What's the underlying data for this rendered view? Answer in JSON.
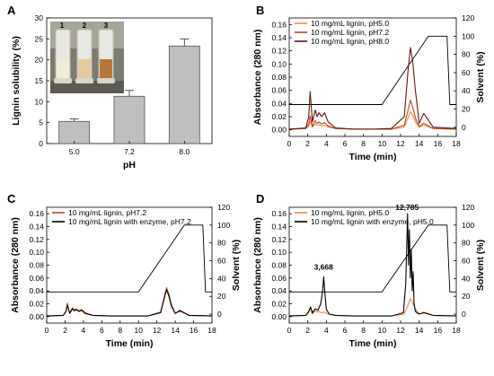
{
  "chart_data": [
    {
      "panel": "A",
      "type": "bar",
      "xlabel": "pH",
      "ylabel": "Lignin solubility (%)",
      "categories": [
        "5.0",
        "7.2",
        "8.0"
      ],
      "values": [
        5.3,
        11.3,
        23.3
      ],
      "errors": [
        0.6,
        1.4,
        1.7
      ],
      "ylim": [
        0,
        30
      ],
      "yticks": [
        "0",
        "5",
        "10",
        "15",
        "20",
        "25",
        "30"
      ],
      "bar_color": "#bfbfbf",
      "inset_photo_labels": [
        "1",
        "2",
        "3"
      ]
    },
    {
      "panel": "B",
      "type": "line",
      "xlabel": "Time (min)",
      "ylabel": "Absorbance (280 nm)",
      "ylabel_right": "Solvent (%)",
      "xlim": [
        0,
        18
      ],
      "ylim": [
        -0.01,
        0.17
      ],
      "ylim_right": [
        -10,
        120
      ],
      "xticks": [
        "0",
        "2",
        "4",
        "6",
        "8",
        "10",
        "12",
        "14",
        "16",
        "18"
      ],
      "yticks": [
        "0.00",
        "0.02",
        "0.04",
        "0.06",
        "0.08",
        "0.10",
        "0.12",
        "0.14",
        "0.16"
      ],
      "yticks_right": [
        "0",
        "20",
        "40",
        "60",
        "80",
        "100",
        "120"
      ],
      "legend_position": "top-left",
      "series": [
        {
          "name": "10 mg/mL lignin, pH5.0",
          "color": "#f08a4b",
          "x": [
            0,
            1.8,
            2.1,
            2.25,
            2.5,
            2.8,
            3.0,
            3.2,
            3.5,
            3.8,
            4.2,
            5,
            7,
            9,
            11,
            12.4,
            12.8,
            13.05,
            13.3,
            13.6,
            14.0,
            14.5,
            15.5,
            18
          ],
          "y": [
            0.001,
            0.002,
            0.006,
            0.013,
            0.004,
            0.009,
            0.007,
            0.008,
            0.006,
            0.007,
            0.004,
            0.002,
            0.001,
            0.001,
            0.001,
            0.004,
            0.018,
            0.028,
            0.022,
            0.012,
            0.004,
            0.007,
            0.002,
            0.001
          ]
        },
        {
          "name": "10 mg/mL lignin, pH7.2",
          "color": "#c0441c",
          "x": [
            0,
            1.8,
            2.1,
            2.25,
            2.5,
            2.8,
            3.0,
            3.2,
            3.5,
            3.8,
            4.2,
            5,
            7,
            9,
            11,
            12.4,
            12.8,
            13.05,
            13.3,
            13.6,
            14.0,
            14.5,
            15.5,
            18
          ],
          "y": [
            0.001,
            0.002,
            0.009,
            0.021,
            0.005,
            0.014,
            0.01,
            0.012,
            0.009,
            0.011,
            0.006,
            0.002,
            0.001,
            0.001,
            0.001,
            0.007,
            0.03,
            0.045,
            0.035,
            0.018,
            0.005,
            0.01,
            0.002,
            0.001
          ]
        },
        {
          "name": "10 mg/mL lignin, pH8.0",
          "color": "#5a1a12",
          "x": [
            0,
            1.8,
            2.1,
            2.25,
            2.5,
            2.8,
            3.0,
            3.2,
            3.5,
            3.8,
            4.2,
            5,
            7,
            9,
            11,
            12.4,
            12.8,
            13.05,
            13.3,
            13.6,
            14.0,
            14.5,
            15.5,
            18
          ],
          "y": [
            0.001,
            0.003,
            0.02,
            0.058,
            0.012,
            0.03,
            0.02,
            0.026,
            0.02,
            0.026,
            0.012,
            0.003,
            0.001,
            0.001,
            0.002,
            0.02,
            0.09,
            0.125,
            0.105,
            0.06,
            0.01,
            0.025,
            0.004,
            0.002
          ]
        },
        {
          "name": "Solvent",
          "axis": "right",
          "color": "#000000",
          "x": [
            0,
            10,
            15,
            17,
            17.3,
            18
          ],
          "y": [
            25,
            25,
            100,
            100,
            25,
            25
          ]
        }
      ]
    },
    {
      "panel": "C",
      "type": "line",
      "xlabel": "Time (min)",
      "ylabel": "Absorbance (280 nm)",
      "ylabel_right": "Solvent (%)",
      "xlim": [
        0,
        18
      ],
      "ylim": [
        -0.01,
        0.17
      ],
      "ylim_right": [
        -10,
        120
      ],
      "xticks": [
        "0",
        "2",
        "4",
        "6",
        "8",
        "10",
        "12",
        "14",
        "16",
        "18"
      ],
      "yticks": [
        "0.00",
        "0.02",
        "0.04",
        "0.06",
        "0.08",
        "0.10",
        "0.12",
        "0.14",
        "0.16"
      ],
      "yticks_right": [
        "0",
        "20",
        "40",
        "60",
        "80",
        "100",
        "120"
      ],
      "legend_position": "top-left",
      "series": [
        {
          "name": "10 mg/mL lignin, pH7.2",
          "color": "#c0441c",
          "x": [
            0,
            1.8,
            2.1,
            2.25,
            2.5,
            2.8,
            3.0,
            3.2,
            3.5,
            3.8,
            4.2,
            5,
            7,
            9,
            11,
            12.4,
            12.8,
            13.05,
            13.3,
            13.6,
            14.0,
            14.5,
            15.5,
            18
          ],
          "y": [
            0.001,
            0.002,
            0.009,
            0.021,
            0.005,
            0.014,
            0.01,
            0.012,
            0.009,
            0.011,
            0.006,
            0.002,
            0.001,
            0.001,
            0.001,
            0.007,
            0.03,
            0.045,
            0.035,
            0.018,
            0.005,
            0.01,
            0.002,
            0.001
          ]
        },
        {
          "name": "10 mg/mL lignin with enzyme, pH7.2",
          "color": "#000000",
          "x": [
            0,
            1.8,
            2.1,
            2.25,
            2.5,
            2.8,
            3.0,
            3.2,
            3.5,
            3.8,
            4.2,
            5,
            7,
            9,
            11,
            12.4,
            12.8,
            13.05,
            13.3,
            13.6,
            14.0,
            14.5,
            15.5,
            18
          ],
          "y": [
            0.001,
            0.002,
            0.008,
            0.018,
            0.005,
            0.012,
            0.009,
            0.011,
            0.008,
            0.01,
            0.005,
            0.002,
            0.001,
            0.001,
            0.001,
            0.006,
            0.028,
            0.042,
            0.032,
            0.016,
            0.005,
            0.009,
            0.002,
            0.001
          ]
        },
        {
          "name": "Solvent",
          "axis": "right",
          "color": "#000000",
          "x": [
            0,
            10,
            15,
            17,
            17.3,
            18
          ],
          "y": [
            25,
            25,
            100,
            100,
            25,
            25
          ]
        }
      ]
    },
    {
      "panel": "D",
      "type": "line",
      "xlabel": "Time (min)",
      "ylabel": "Absorbance (280 nm)",
      "ylabel_right": "Solvent (%)",
      "xlim": [
        0,
        18
      ],
      "ylim": [
        -0.01,
        0.17
      ],
      "ylim_right": [
        -10,
        120
      ],
      "xticks": [
        "0",
        "2",
        "4",
        "6",
        "8",
        "10",
        "12",
        "14",
        "16",
        "18"
      ],
      "yticks": [
        "0.00",
        "0.02",
        "0.04",
        "0.06",
        "0.08",
        "0.10",
        "0.12",
        "0.14",
        "0.16"
      ],
      "yticks_right": [
        "0",
        "20",
        "40",
        "60",
        "80",
        "100",
        "120"
      ],
      "legend_position": "top-left",
      "annotations": [
        {
          "text": "3,668",
          "x": 3.7,
          "y": 0.073
        },
        {
          "text": "12,785",
          "x": 12.7,
          "y": 0.166
        }
      ],
      "series": [
        {
          "name": "10 mg/mL lignin, pH5.0",
          "color": "#f08a4b",
          "x": [
            0,
            1.8,
            2.1,
            2.25,
            2.5,
            2.8,
            3.0,
            3.2,
            3.5,
            3.8,
            4.2,
            5,
            7,
            9,
            11,
            12.4,
            12.8,
            13.05,
            13.3,
            13.6,
            14.0,
            14.5,
            15.5,
            18
          ],
          "y": [
            0.001,
            0.002,
            0.006,
            0.013,
            0.004,
            0.009,
            0.007,
            0.008,
            0.006,
            0.007,
            0.004,
            0.002,
            0.001,
            0.001,
            0.001,
            0.004,
            0.018,
            0.028,
            0.022,
            0.012,
            0.004,
            0.007,
            0.002,
            0.001
          ]
        },
        {
          "name": "10 mg/mL lignin with enzyme, pH5.0",
          "color": "#000000",
          "x": [
            0,
            1.8,
            2.1,
            2.3,
            2.5,
            2.8,
            3.1,
            3.4,
            3.6,
            3.72,
            3.85,
            4.0,
            4.3,
            5,
            7,
            9,
            11,
            12.3,
            12.55,
            12.75,
            12.85,
            12.95,
            13.05,
            13.15,
            13.25,
            13.35,
            13.45,
            13.6,
            14.0,
            14.5,
            15.5,
            18
          ],
          "y": [
            0.001,
            0.002,
            0.008,
            0.015,
            0.006,
            0.012,
            0.01,
            0.02,
            0.04,
            0.062,
            0.035,
            0.012,
            0.004,
            0.002,
            0.001,
            0.001,
            0.001,
            0.006,
            0.05,
            0.16,
            0.08,
            0.135,
            0.06,
            0.105,
            0.04,
            0.07,
            0.02,
            0.008,
            0.004,
            0.006,
            0.002,
            0.001
          ]
        },
        {
          "name": "Solvent",
          "axis": "right",
          "color": "#000000",
          "x": [
            0,
            10,
            15,
            17,
            17.3,
            18
          ],
          "y": [
            25,
            25,
            100,
            100,
            25,
            25
          ]
        }
      ]
    }
  ]
}
